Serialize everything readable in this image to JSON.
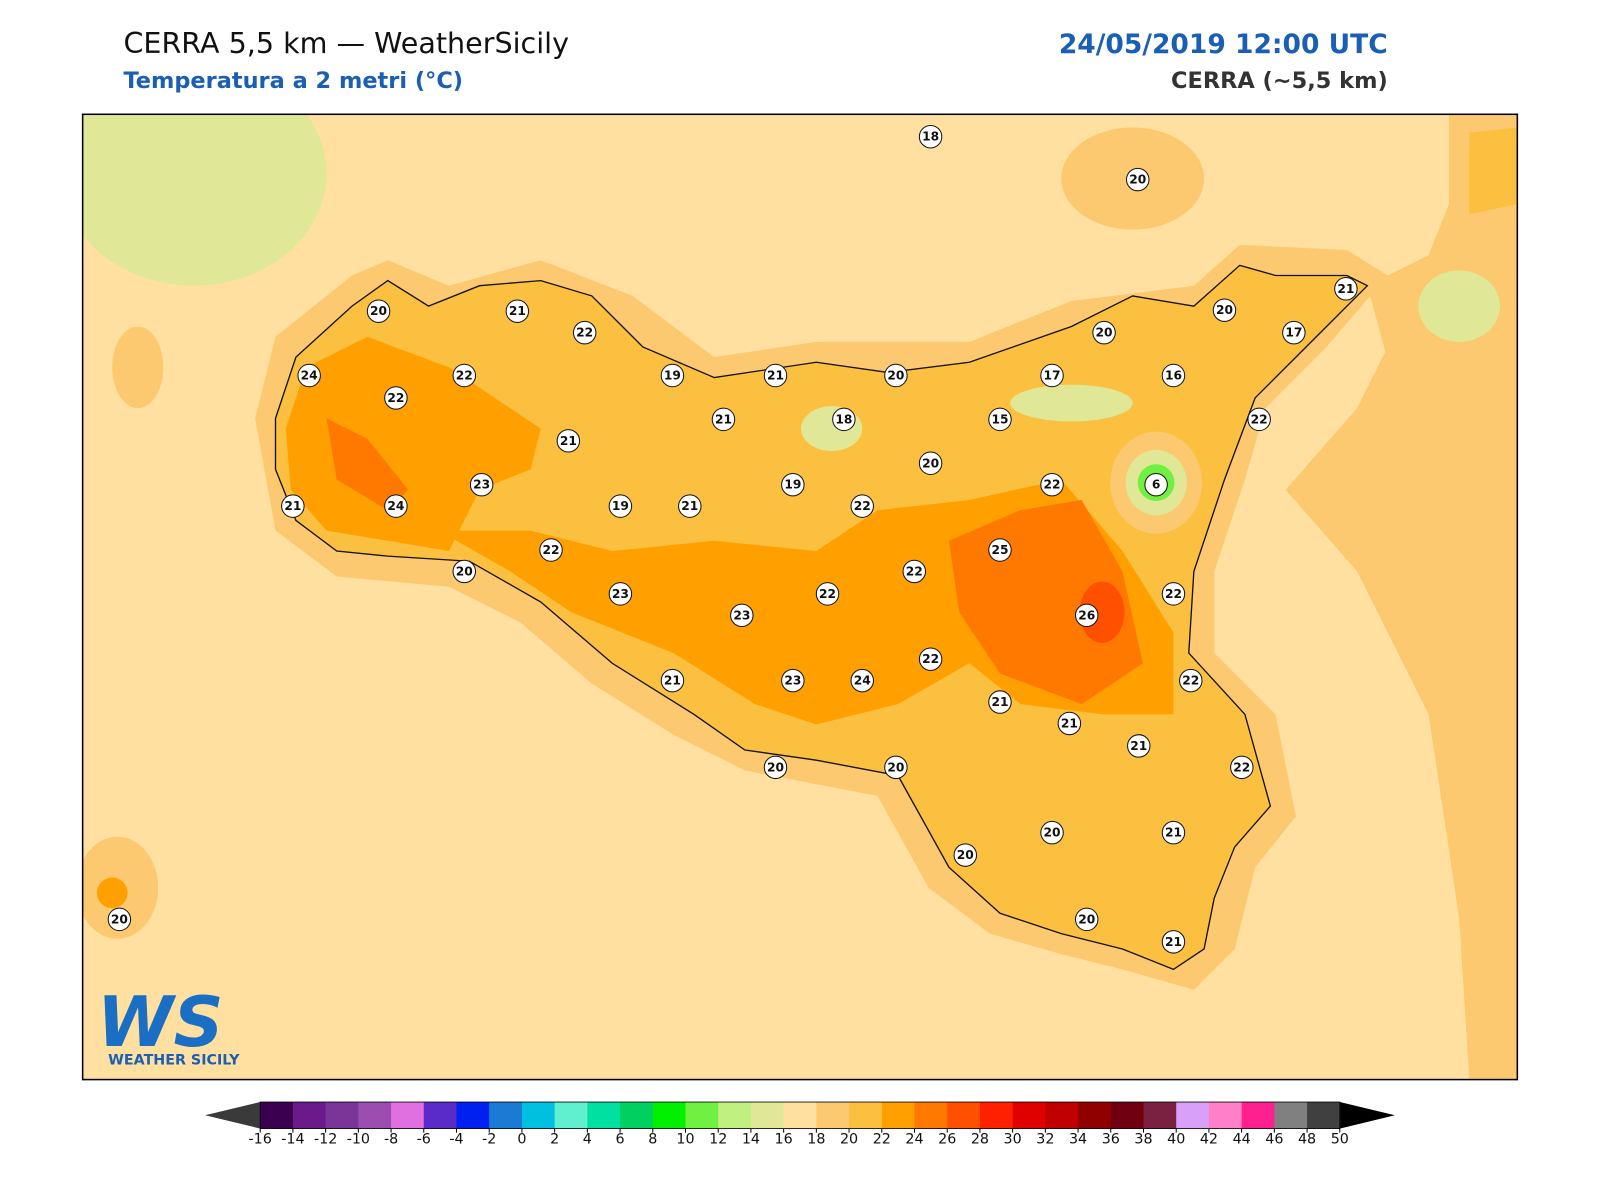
{
  "header": {
    "title": "CERRA 5,5 km — WeatherSicily",
    "subtitle": "Temperatura a 2 metri (°C)",
    "date": "24/05/2019 12:00 UTC",
    "model": "CERRA (~5,5 km)"
  },
  "map": {
    "stations": [
      18,
      20,
      20,
      21,
      22,
      21,
      20,
      20,
      17,
      24,
      22,
      19,
      21,
      20,
      17,
      16,
      22,
      21,
      18,
      15,
      22,
      21,
      20,
      23,
      19,
      22,
      6,
      21,
      24,
      19,
      21,
      22,
      22,
      25,
      20,
      22,
      23,
      22,
      22,
      23,
      26,
      22,
      21,
      23,
      24,
      22,
      21,
      21,
      21,
      22,
      20,
      20,
      20,
      20,
      21,
      20,
      20,
      21
    ]
  },
  "colorbar": {
    "ticks": [
      -16,
      -14,
      -12,
      -10,
      -8,
      -6,
      -4,
      -2,
      0,
      2,
      4,
      6,
      8,
      10,
      12,
      14,
      16,
      18,
      20,
      22,
      24,
      26,
      28,
      30,
      32,
      34,
      36,
      38,
      40,
      42,
      44,
      46,
      48,
      50
    ],
    "colors": [
      "#3c0050",
      "#6a1a8a",
      "#7b3599",
      "#9b4eb0",
      "#e070e0",
      "#5a2bc8",
      "#0020f0",
      "#1a7ad4",
      "#00c0e0",
      "#60f0d0",
      "#00e0a0",
      "#00d060",
      "#00f000",
      "#70f040",
      "#c0f080",
      "#e0e898",
      "#ffe0a0",
      "#fcc870",
      "#fcc040",
      "#ffa000",
      "#ff7800",
      "#ff5000",
      "#ff2000",
      "#e00000",
      "#c00000",
      "#900000",
      "#700010",
      "#7a2040",
      "#d8a0f8",
      "#ff80c8",
      "#ff2090",
      "#808080",
      "#404040"
    ],
    "under_color": "#3a3a3a",
    "over_color": "#000000"
  },
  "logo": {
    "mark": "WS",
    "name": "WEATHER SICILY"
  }
}
